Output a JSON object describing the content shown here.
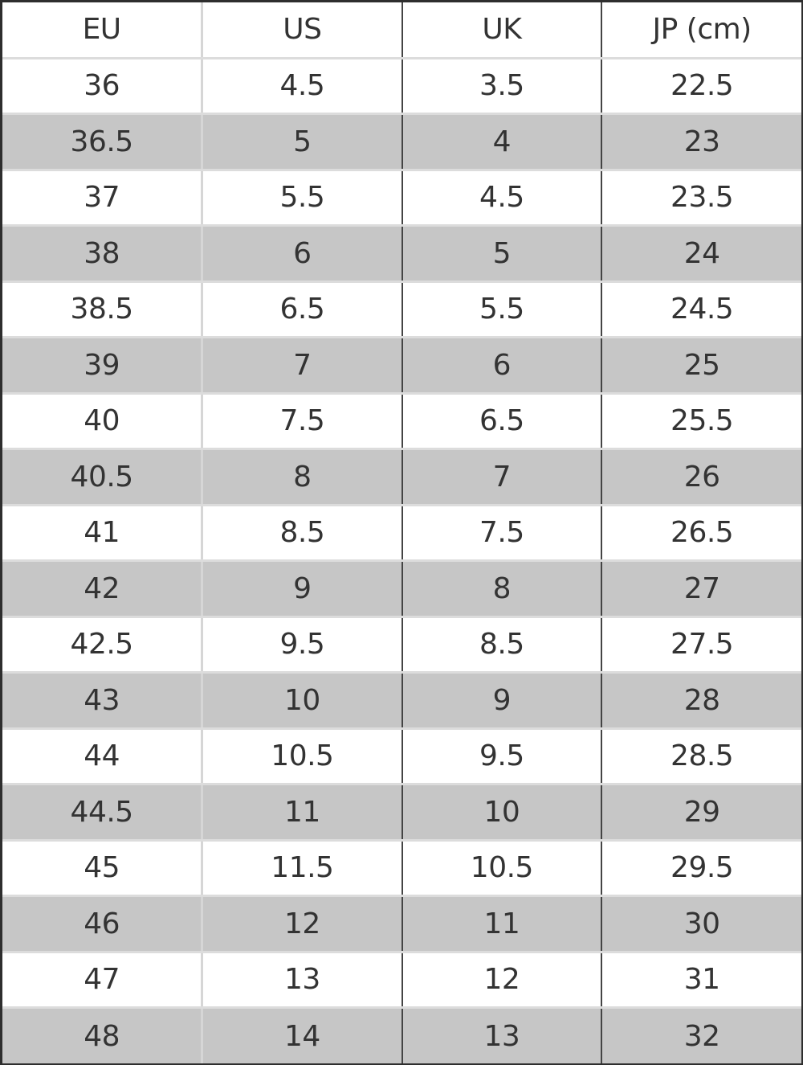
{
  "table": {
    "headers": [
      "EU",
      "US",
      "UK",
      "JP (cm)"
    ],
    "rows": [
      [
        "36",
        "4.5",
        "3.5",
        "22.5"
      ],
      [
        "36.5",
        "5",
        "4",
        "23"
      ],
      [
        "37",
        "5.5",
        "4.5",
        "23.5"
      ],
      [
        "38",
        "6",
        "5",
        "24"
      ],
      [
        "38.5",
        "6.5",
        "5.5",
        "24.5"
      ],
      [
        "39",
        "7",
        "6",
        "25"
      ],
      [
        "40",
        "7.5",
        "6.5",
        "25.5"
      ],
      [
        "40.5",
        "8",
        "7",
        "26"
      ],
      [
        "41",
        "8.5",
        "7.5",
        "26.5"
      ],
      [
        "42",
        "9",
        "8",
        "27"
      ],
      [
        "42.5",
        "9.5",
        "8.5",
        "27.5"
      ],
      [
        "43",
        "10",
        "9",
        "28"
      ],
      [
        "44",
        "10.5",
        "9.5",
        "28.5"
      ],
      [
        "44.5",
        "11",
        "10",
        "29"
      ],
      [
        "45",
        "11.5",
        "10.5",
        "29.5"
      ],
      [
        "46",
        "12",
        "11",
        "30"
      ],
      [
        "47",
        "13",
        "12",
        "31"
      ],
      [
        "48",
        "14",
        "13",
        "32"
      ]
    ],
    "stripe_color": "#c6c6c6"
  }
}
